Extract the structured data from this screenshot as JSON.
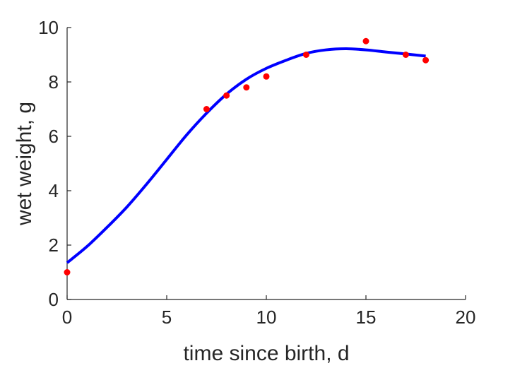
{
  "chart_data": {
    "type": "scatter",
    "title": "",
    "xlabel": "time since birth, d",
    "ylabel": "wet weight, g",
    "xlim": [
      0,
      20
    ],
    "ylim": [
      0,
      10
    ],
    "xticks": [
      0,
      5,
      10,
      15,
      20
    ],
    "yticks": [
      0,
      2,
      4,
      6,
      8,
      10
    ],
    "grid": false,
    "legend": "none",
    "series": [
      {
        "type": "line",
        "color": "#0000ff",
        "x": [
          0,
          1,
          2,
          3,
          4,
          5,
          6,
          7,
          8,
          9,
          10,
          11,
          12,
          13,
          14,
          15,
          16,
          17,
          18
        ],
        "y": [
          1.35,
          1.95,
          2.65,
          3.4,
          4.25,
          5.15,
          6.05,
          6.85,
          7.55,
          8.1,
          8.5,
          8.8,
          9.05,
          9.18,
          9.22,
          9.18,
          9.1,
          9.03,
          8.95
        ]
      },
      {
        "type": "scatter",
        "color": "#ff0000",
        "x": [
          0,
          7,
          8,
          9,
          10,
          12,
          15,
          17,
          18
        ],
        "y": [
          1.0,
          7.0,
          7.5,
          7.8,
          8.2,
          9.0,
          9.5,
          9.0,
          8.8
        ]
      }
    ]
  }
}
